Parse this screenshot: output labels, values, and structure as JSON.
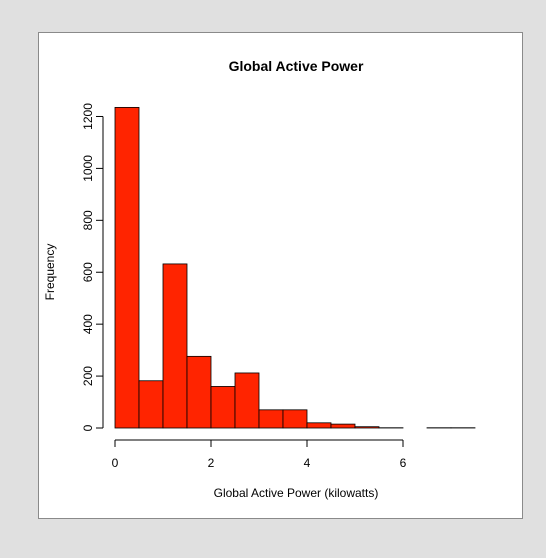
{
  "chart_data": {
    "type": "bar",
    "title": "Global Active Power",
    "xlabel": "Global Active Power (kilowatts)",
    "ylabel": "Frequency",
    "bin_width": 0.5,
    "bins": [
      {
        "x0": 0.0,
        "x1": 0.5,
        "count": 1235
      },
      {
        "x0": 0.5,
        "x1": 1.0,
        "count": 182
      },
      {
        "x0": 1.0,
        "x1": 1.5,
        "count": 632
      },
      {
        "x0": 1.5,
        "x1": 2.0,
        "count": 276
      },
      {
        "x0": 2.0,
        "x1": 2.5,
        "count": 160
      },
      {
        "x0": 2.5,
        "x1": 3.0,
        "count": 212
      },
      {
        "x0": 3.0,
        "x1": 3.5,
        "count": 70
      },
      {
        "x0": 3.5,
        "x1": 4.0,
        "count": 70
      },
      {
        "x0": 4.0,
        "x1": 4.5,
        "count": 20
      },
      {
        "x0": 4.5,
        "x1": 5.0,
        "count": 15
      },
      {
        "x0": 5.0,
        "x1": 5.5,
        "count": 5
      },
      {
        "x0": 5.5,
        "x1": 6.0,
        "count": 1
      },
      {
        "x0": 6.0,
        "x1": 6.5,
        "count": 0
      },
      {
        "x0": 6.5,
        "x1": 7.0,
        "count": 1
      },
      {
        "x0": 7.0,
        "x1": 7.5,
        "count": 1
      }
    ],
    "x_ticks": [
      0,
      2,
      4,
      6
    ],
    "y_ticks": [
      0,
      200,
      400,
      600,
      800,
      1000,
      1200
    ],
    "xlim": [
      0,
      7.5
    ],
    "ylim": [
      0,
      1235
    ],
    "bar_color": "#ff2400",
    "grid": false
  }
}
